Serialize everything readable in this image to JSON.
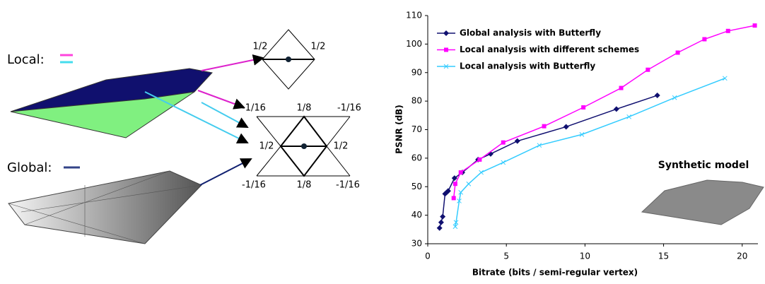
{
  "diagram": {
    "local": "Local:",
    "global": "Global:",
    "labels": [
      "1/2",
      "1/2",
      "-1/16",
      "1/8",
      "-1/16",
      "1/2",
      "1/2",
      "-1/16",
      "1/8",
      "-1/16"
    ]
  },
  "chart_data": {
    "type": "line",
    "xlabel": "Bitrate (bits / semi-regular vertex)",
    "ylabel": "PSNR (dB)",
    "annotation": "Synthetic model",
    "xlim": [
      0,
      21
    ],
    "xticks": [
      0,
      5,
      10,
      15,
      20
    ],
    "ylim": [
      30,
      110
    ],
    "yticks": [
      30,
      40,
      50,
      60,
      70,
      80,
      90,
      100,
      110
    ],
    "series": [
      {
        "name": "Global analysis with Butterfly",
        "color": "#101070",
        "marker": "diamond",
        "x": [
          0.75,
          0.85,
          0.95,
          1.1,
          1.2,
          1.3,
          1.7,
          2.2,
          3.2,
          4.0,
          5.7,
          8.8,
          12.0,
          14.6
        ],
        "values": [
          35.5,
          37.5,
          39.5,
          47.5,
          48,
          48.5,
          53,
          55,
          59.5,
          61.5,
          66,
          71,
          77.2,
          82
        ]
      },
      {
        "name": "Local analysis with different schemes",
        "color": "#ff00ff",
        "marker": "square",
        "x": [
          1.65,
          1.75,
          2.1,
          3.3,
          4.8,
          7.4,
          9.9,
          12.3,
          14.0,
          15.9,
          17.6,
          19.1,
          20.8
        ],
        "values": [
          46,
          51,
          55,
          59.5,
          65.5,
          71.2,
          77.8,
          84.6,
          91,
          97,
          101.7,
          104.6,
          106.5
        ]
      },
      {
        "name": "Local analysis with Butterfly",
        "color": "#33ccff",
        "marker": "x",
        "x": [
          1.75,
          1.8,
          2.0,
          2.1,
          2.6,
          3.4,
          4.8,
          7.1,
          9.8,
          12.8,
          15.7,
          18.9
        ],
        "values": [
          36,
          37.5,
          45,
          48,
          51,
          55,
          58.5,
          64.5,
          68.3,
          74.5,
          81.2,
          88
        ]
      }
    ]
  }
}
